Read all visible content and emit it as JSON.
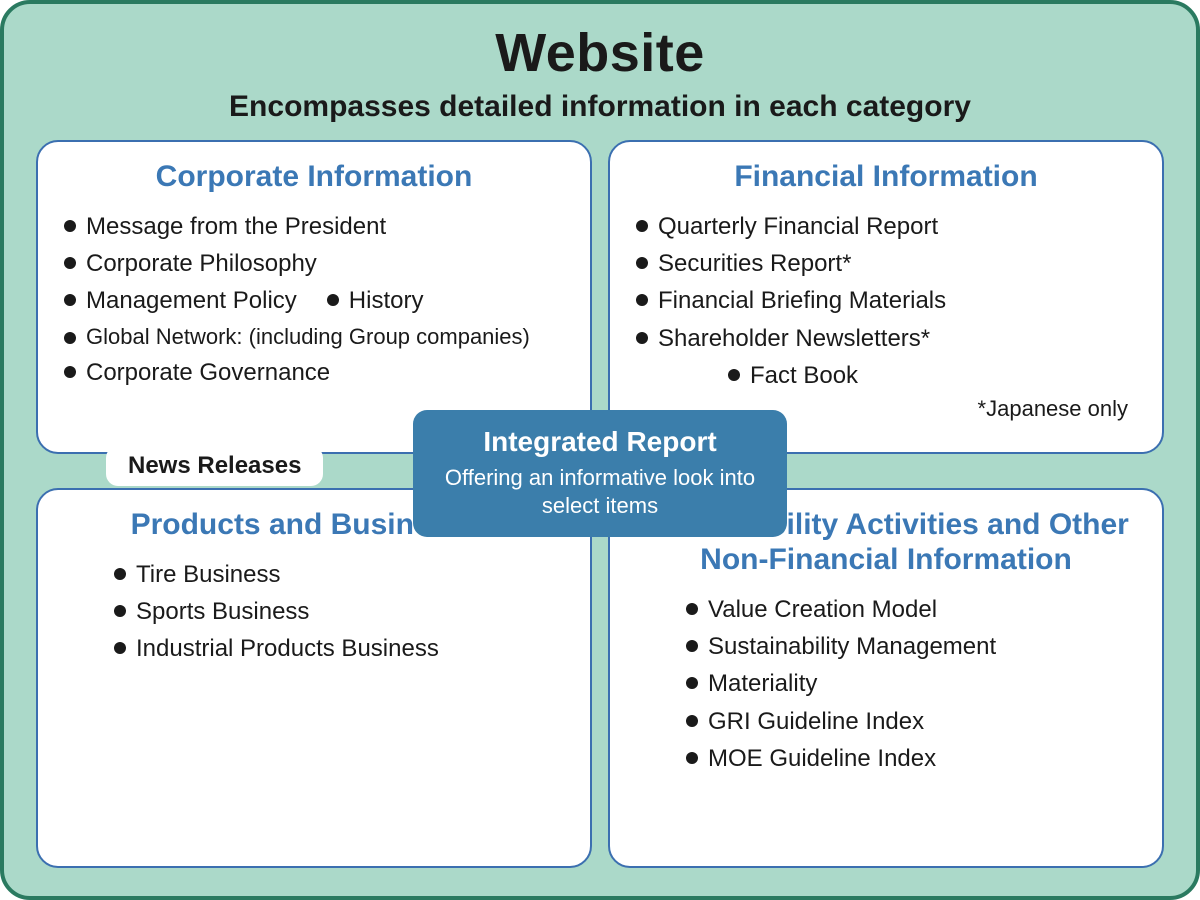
{
  "layout": {
    "outer_bg": "#abd9c9",
    "outer_border": "#2a7a60",
    "card_bg": "#ffffff",
    "card_border": "#3b6fb0",
    "title_color": "#3b78b5",
    "text_color": "#1a1a1a",
    "center_bg": "#3b7eab",
    "center_fg": "#ffffff",
    "border_radius_outer": 30,
    "border_radius_card": 22
  },
  "header": {
    "title": "Website",
    "subtitle": "Encompasses detailed information in each category"
  },
  "news_label": "News Releases",
  "center": {
    "title": "Integrated Report",
    "subtitle": "Offering an informative look into select items"
  },
  "quadrants": {
    "corporate": {
      "title": "Corporate Information",
      "items_a": [
        "Message from the President",
        "Corporate Philosophy"
      ],
      "row": {
        "a": "Management Policy",
        "b": "History"
      },
      "items_b": [
        "Global Network: (including Group companies)",
        "Corporate Governance"
      ]
    },
    "financial": {
      "title": "Financial Information",
      "items": [
        "Quarterly Financial Report",
        "Securities Report*",
        "Financial Briefing Materials",
        "Shareholder Newsletters*"
      ],
      "indent_item": "Fact Book",
      "note": "*Japanese only"
    },
    "products": {
      "title": "Products and Businesses",
      "items": [
        "Tire Business",
        "Sports Business",
        "Industrial Products Business"
      ]
    },
    "sustainability": {
      "title_l1": "Sustainability Activities and Other",
      "title_l2": "Non-Financial Information",
      "items": [
        "Value Creation Model",
        "Sustainability Management",
        "Materiality",
        "GRI Guideline Index",
        "MOE Guideline Index"
      ]
    }
  }
}
